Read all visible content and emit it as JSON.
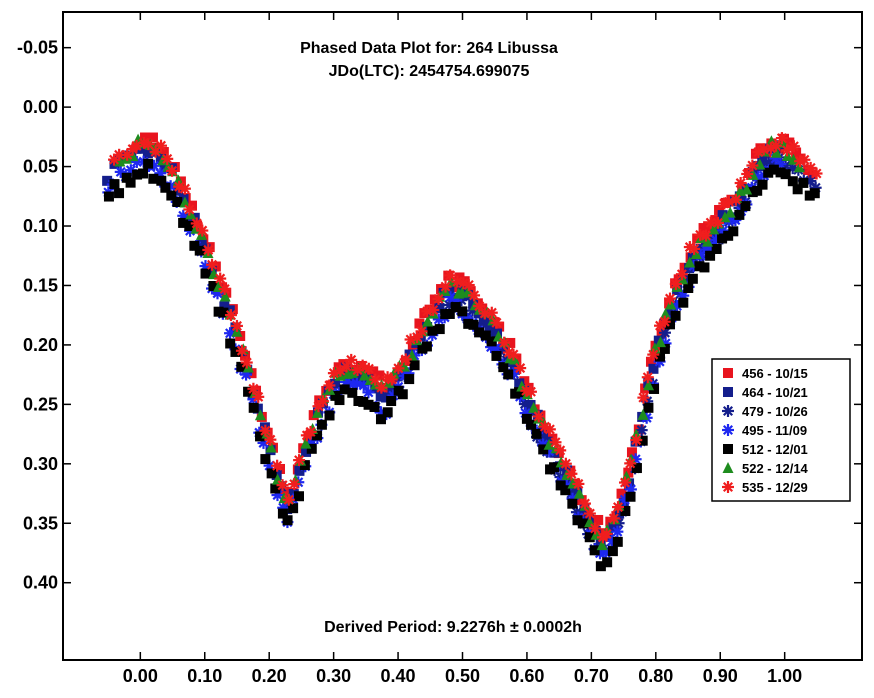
{
  "chart_data": {
    "type": "scatter",
    "title": "Phased Data Plot for: 264 Libussa",
    "subtitle": "JDo(LTC): 2454754.699075",
    "annotation": "Derived Period: 9.2276h ± 0.0002h",
    "xlabel": "",
    "ylabel": "",
    "xlim": [
      -0.12,
      1.12
    ],
    "ylim": [
      -0.08,
      0.465
    ],
    "y_inverted": true,
    "grid": false,
    "legend_position": "right",
    "x_ticks": [
      "0.00",
      "0.10",
      "0.20",
      "0.30",
      "0.40",
      "0.50",
      "0.60",
      "0.70",
      "0.80",
      "0.90",
      "1.00"
    ],
    "y_ticks": [
      "-0.05",
      "0.00",
      "0.05",
      "0.10",
      "0.15",
      "0.20",
      "0.25",
      "0.30",
      "0.35",
      "0.40"
    ],
    "series": [
      {
        "name": "456 - 10/15",
        "color": "#e8141e",
        "marker": "square",
        "offset": 0.0,
        "x_range": [
          0.0,
          1.05
        ]
      },
      {
        "name": "464 - 10/21",
        "color": "#141e8c",
        "marker": "square",
        "offset": 0.008,
        "x_range": [
          -0.05,
          1.0
        ]
      },
      {
        "name": "479 - 10/26",
        "color": "#141e8c",
        "marker": "asterisk",
        "offset": 0.018,
        "x_range": [
          0.48,
          1.05
        ]
      },
      {
        "name": "495 - 11/09",
        "color": "#1e28f0",
        "marker": "asterisk",
        "offset": 0.02,
        "x_range": [
          -0.05,
          1.0
        ]
      },
      {
        "name": "512 - 12/01",
        "color": "#000000",
        "marker": "square",
        "offset": 0.025,
        "x_range": [
          -0.05,
          1.05
        ]
      },
      {
        "name": "522 - 12/14",
        "color": "#1e8c1e",
        "marker": "triangle",
        "offset": 0.005,
        "x_range": [
          -0.03,
          1.03
        ]
      },
      {
        "name": "535 - 12/29",
        "color": "#f01e1e",
        "marker": "asterisk",
        "offset": 0.0,
        "x_range": [
          -0.04,
          1.05
        ]
      }
    ],
    "mean_curve": {
      "x": [
        -0.05,
        -0.02,
        0.0,
        0.02,
        0.05,
        0.08,
        0.1,
        0.12,
        0.15,
        0.18,
        0.2,
        0.22,
        0.23,
        0.25,
        0.28,
        0.3,
        0.32,
        0.35,
        0.38,
        0.4,
        0.42,
        0.45,
        0.48,
        0.5,
        0.52,
        0.55,
        0.58,
        0.6,
        0.62,
        0.65,
        0.68,
        0.7,
        0.72,
        0.74,
        0.76,
        0.78,
        0.8,
        0.83,
        0.86,
        0.9,
        0.93,
        0.96,
        0.98,
        1.0,
        1.02,
        1.05
      ],
      "y": [
        0.05,
        0.035,
        0.025,
        0.03,
        0.05,
        0.085,
        0.11,
        0.14,
        0.185,
        0.24,
        0.28,
        0.315,
        0.33,
        0.29,
        0.245,
        0.225,
        0.215,
        0.22,
        0.235,
        0.22,
        0.2,
        0.17,
        0.145,
        0.15,
        0.16,
        0.18,
        0.21,
        0.235,
        0.26,
        0.29,
        0.32,
        0.345,
        0.36,
        0.34,
        0.3,
        0.25,
        0.2,
        0.15,
        0.115,
        0.09,
        0.07,
        0.04,
        0.028,
        0.03,
        0.04,
        0.055
      ]
    }
  }
}
